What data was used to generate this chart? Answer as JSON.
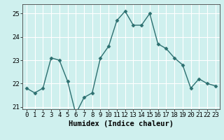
{
  "x": [
    0,
    1,
    2,
    3,
    4,
    5,
    6,
    7,
    8,
    9,
    10,
    11,
    12,
    13,
    14,
    15,
    16,
    17,
    18,
    19,
    20,
    21,
    22,
    23
  ],
  "y": [
    21.8,
    21.6,
    21.8,
    23.1,
    23.0,
    22.1,
    20.7,
    21.4,
    21.6,
    23.1,
    23.6,
    24.7,
    25.1,
    24.5,
    24.5,
    25.0,
    23.7,
    23.5,
    23.1,
    22.8,
    21.8,
    22.2,
    22.0,
    21.9
  ],
  "line_color": "#2d7070",
  "marker": "D",
  "marker_size": 2.5,
  "line_width": 1.0,
  "xlabel": "Humidex (Indice chaleur)",
  "xlabel_fontsize": 7.5,
  "background_color": "#cff0ee",
  "grid_color": "#ffffff",
  "ylim": [
    20.9,
    25.4
  ],
  "yticks": [
    21,
    22,
    23,
    24,
    25
  ],
  "xticks": [
    0,
    1,
    2,
    3,
    4,
    5,
    6,
    7,
    8,
    9,
    10,
    11,
    12,
    13,
    14,
    15,
    16,
    17,
    18,
    19,
    20,
    21,
    22,
    23
  ],
  "tick_fontsize": 6.5
}
